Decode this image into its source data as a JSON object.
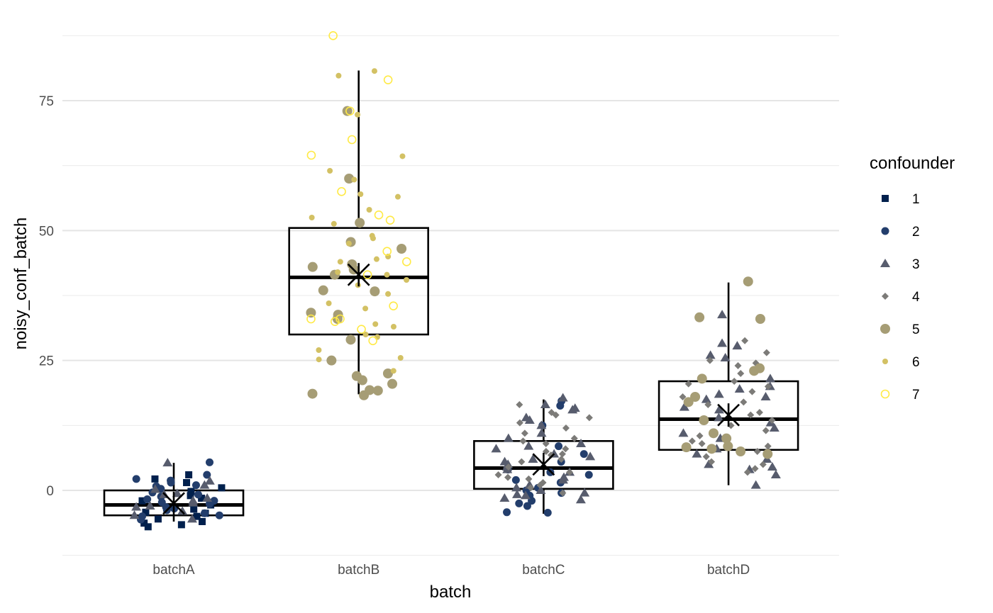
{
  "chart_data": {
    "type": "boxplot",
    "xlabel": "batch",
    "ylabel": "noisy_conf_batch",
    "categories": [
      "batchA",
      "batchB",
      "batchC",
      "batchD"
    ],
    "ylim": [
      -13,
      88
    ],
    "yticks": [
      0,
      25,
      50,
      75
    ],
    "grid": true,
    "legend": {
      "title": "confounder",
      "placement": "right",
      "entries": [
        {
          "label": "1",
          "shape": "square",
          "color": "#00204d"
        },
        {
          "label": "2",
          "shape": "circle",
          "color": "#233e6c"
        },
        {
          "label": "3",
          "shape": "triangle",
          "color": "#575c6d"
        },
        {
          "label": "4",
          "shape": "diamond",
          "color": "#7c7b78"
        },
        {
          "label": "5",
          "shape": "circle-large",
          "color": "#a69d75"
        },
        {
          "label": "6",
          "shape": "circle-small",
          "color": "#d3c164"
        },
        {
          "label": "7",
          "shape": "circle-open",
          "color": "#ffea46"
        }
      ]
    },
    "boxes": [
      {
        "category": "batchA",
        "whisker_low": -6.0,
        "q1": -4.8,
        "median": -2.8,
        "q3": 0.0,
        "whisker_high": 5.3,
        "mean": -2.5
      },
      {
        "category": "batchB",
        "whisker_low": 18.5,
        "q1": 30.0,
        "median": 41.0,
        "q3": 50.5,
        "whisker_high": 80.8,
        "mean": 41.5
      },
      {
        "category": "batchC",
        "whisker_low": -4.5,
        "q1": 0.3,
        "median": 4.3,
        "q3": 9.5,
        "whisker_high": 17.5,
        "mean": 5.0
      },
      {
        "category": "batchD",
        "whisker_low": 1.0,
        "q1": 7.8,
        "median": 13.7,
        "q3": 21.0,
        "whisker_high": 40.0,
        "mean": 14.5
      }
    ],
    "points": {
      "batchA": [
        {
          "g": 1,
          "y": [
            3.0,
            2.2,
            1.5,
            0.5,
            -0.2,
            -1.0,
            -2.0,
            -2.8,
            -3.6,
            -4.4,
            -5.0,
            -5.5,
            -6.0,
            -6.3,
            -6.6,
            -7.0,
            -4.2,
            -1.5
          ]
        },
        {
          "g": 2,
          "y": [
            5.4,
            3.0,
            2.2,
            1.5,
            1.0,
            0.3,
            -0.4,
            -1.2,
            -2.0,
            -2.6,
            -3.2,
            -3.8,
            -4.4,
            -5.0,
            -5.6,
            0.8,
            -2.3,
            -3.5,
            -4.8,
            1.9,
            -0.8,
            -1.7
          ]
        },
        {
          "g": 3,
          "y": [
            5.3,
            1.8,
            1.0,
            0.2,
            -0.6,
            -1.5,
            -2.4,
            -3.2,
            -4.0,
            -4.8,
            -5.5,
            -0.8,
            -2.0,
            -3.0
          ]
        }
      ],
      "batchB": [
        {
          "g": 5,
          "y": [
            73.0,
            60.0,
            47.8,
            46.5,
            43.5,
            43.0,
            41.5,
            38.5,
            38.3,
            34.2,
            33.8,
            33.0,
            29.0,
            25.0,
            22.5,
            22.0,
            21.2,
            20.5,
            19.3,
            19.2,
            18.6,
            18.3,
            42.5,
            51.5
          ]
        },
        {
          "g": 6,
          "y": [
            80.7,
            79.8,
            72.3,
            64.3,
            61.5,
            57.0,
            56.5,
            54.0,
            52.5,
            49.0,
            48.5,
            47.5,
            45.0,
            44.5,
            42.0,
            41.5,
            40.5,
            39.5,
            36.0,
            35.0,
            32.0,
            31.5,
            30.0,
            29.5,
            27.0,
            25.5,
            25.2,
            51.3,
            59.8,
            37.8,
            44.0,
            23.0
          ]
        },
        {
          "g": 7,
          "y": [
            87.5,
            79.0,
            73.0,
            67.5,
            64.5,
            57.5,
            53.0,
            52.0,
            46.0,
            44.0,
            41.5,
            35.5,
            33.0,
            33.0,
            32.5,
            31.0,
            28.8
          ]
        }
      ],
      "batchC": [
        {
          "g": 2,
          "y": [
            17.2,
            16.3,
            12.5,
            8.5,
            7.0,
            5.5,
            4.0,
            3.5,
            2.0,
            1.5,
            0.5,
            0.0,
            -0.5,
            -1.0,
            -2.0,
            -2.5,
            -3.0,
            -4.2,
            -4.3,
            3.0
          ]
        },
        {
          "g": 3,
          "y": [
            17.8,
            16.5,
            15.8,
            15.5,
            14.0,
            12.5,
            11.0,
            10.0,
            9.0,
            8.5,
            8.0,
            7.0,
            6.0,
            5.5,
            5.0,
            4.5,
            4.0,
            3.5,
            2.5,
            2.0,
            1.0,
            0.5,
            0.0,
            -0.5,
            -1.0,
            -1.5,
            -1.8,
            13.5,
            6.5,
            -0.8
          ]
        },
        {
          "g": 4,
          "y": [
            16.5,
            15.0,
            14.0,
            13.0,
            12.0,
            11.0,
            10.0,
            9.5,
            9.0,
            8.0,
            7.5,
            7.0,
            6.0,
            5.5,
            4.5,
            3.5,
            3.0,
            2.5,
            1.5,
            1.0,
            0.5,
            -0.5,
            14.5,
            6.8,
            2.2
          ]
        }
      ],
      "batchD": [
        {
          "g": 3,
          "y": [
            33.8,
            28.3,
            27.8,
            26.0,
            21.5,
            20.0,
            19.5,
            18.5,
            18.0,
            17.5,
            16.0,
            15.5,
            14.0,
            13.0,
            12.0,
            11.0,
            10.0,
            8.0,
            7.0,
            6.0,
            5.0,
            4.5,
            4.0,
            3.0,
            1.0,
            25.5
          ]
        },
        {
          "g": 4,
          "y": [
            28.8,
            26.5,
            25.0,
            24.5,
            24.0,
            22.5,
            21.0,
            20.5,
            20.0,
            19.0,
            18.0,
            17.0,
            16.5,
            15.0,
            14.5,
            13.5,
            12.5,
            11.5,
            10.5,
            9.5,
            9.0,
            8.5,
            7.5,
            6.5,
            5.5,
            5.0,
            4.2,
            3.5
          ]
        },
        {
          "g": 5,
          "y": [
            40.2,
            33.3,
            33.0,
            23.5,
            23.0,
            21.5,
            18.0,
            17.0,
            13.5,
            11.0,
            10.0,
            8.5,
            8.3,
            8.0,
            7.5,
            7.0
          ]
        }
      ]
    }
  }
}
